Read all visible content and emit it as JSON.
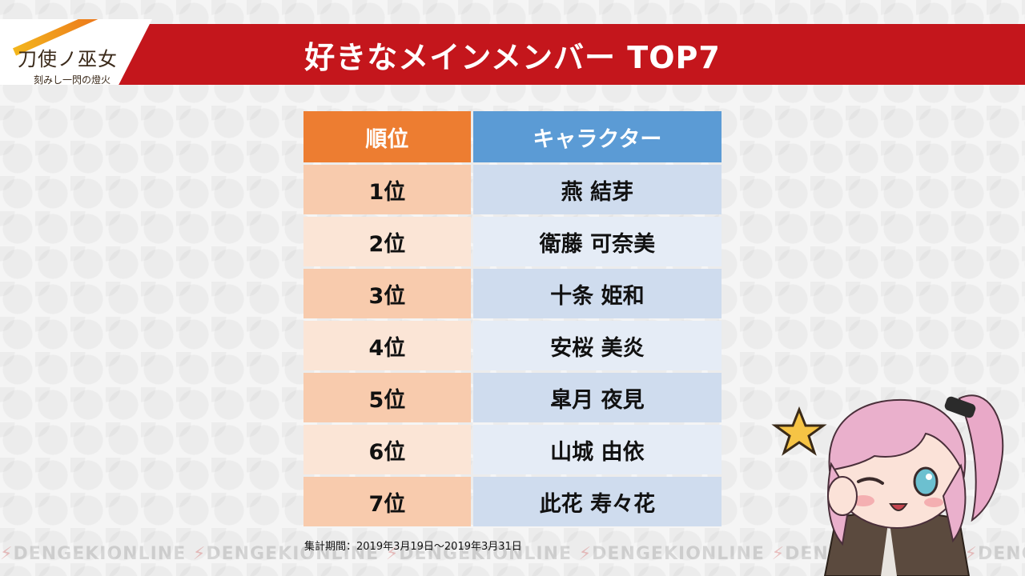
{
  "header": {
    "title": "好きなメインメンバー TOP7",
    "logo_title": "刀使ノ巫女",
    "logo_subtitle": "刻みし一閃の燈火"
  },
  "table": {
    "headers": {
      "rank": "順位",
      "character": "キャラクター"
    },
    "rows": [
      {
        "rank": "1位",
        "character": "燕 結芽"
      },
      {
        "rank": "2位",
        "character": "衛藤 可奈美"
      },
      {
        "rank": "3位",
        "character": "十条 姫和"
      },
      {
        "rank": "4位",
        "character": "安桜 美炎"
      },
      {
        "rank": "5位",
        "character": "皐月 夜見"
      },
      {
        "rank": "6位",
        "character": "山城 由依"
      },
      {
        "rank": "7位",
        "character": "此花 寿々花"
      }
    ]
  },
  "footer": {
    "period": "集計期間：2019年3月19日～2019年3月31日",
    "watermark": "DENGEKIONLINE"
  },
  "colors": {
    "header_red": "#c4161c",
    "rank_header": "#ed7d31",
    "character_header": "#5b9bd5"
  }
}
